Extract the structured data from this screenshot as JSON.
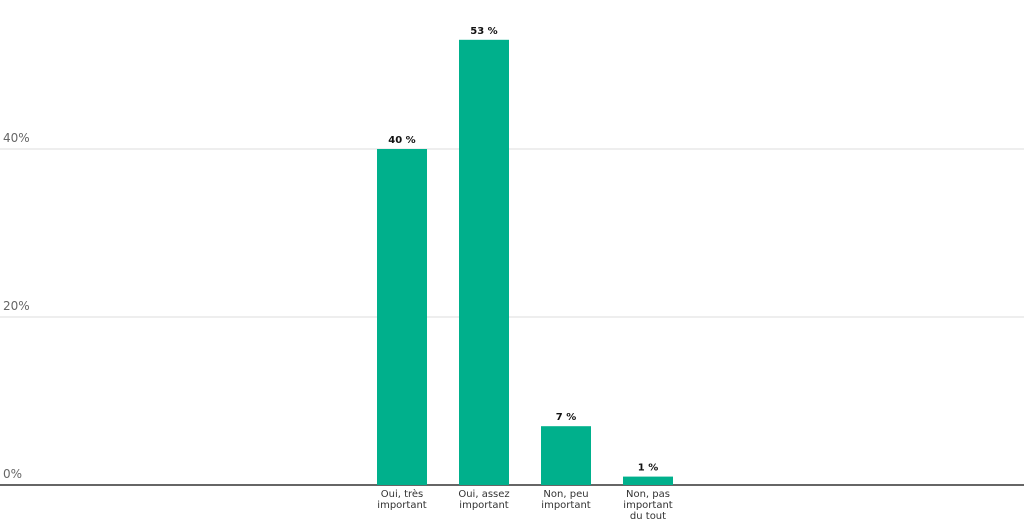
{
  "chart_data": {
    "type": "bar",
    "categories": [
      [
        "Oui, très",
        "important"
      ],
      [
        "Oui, assez",
        "important"
      ],
      [
        "Non, peu",
        "important"
      ],
      [
        "Non, pas",
        "important",
        "du tout"
      ]
    ],
    "values": [
      40,
      53,
      7,
      1
    ],
    "data_labels": [
      "40 %",
      "53 %",
      "7 %",
      "1 %"
    ],
    "y_ticks": [
      {
        "value": 0,
        "label": "0%"
      },
      {
        "value": 20,
        "label": "20%"
      },
      {
        "value": 40,
        "label": "40%"
      }
    ],
    "ylim": [
      0,
      56
    ],
    "grid": true,
    "bar_color": "#00b08c",
    "title": "",
    "xlabel": "",
    "ylabel": ""
  }
}
